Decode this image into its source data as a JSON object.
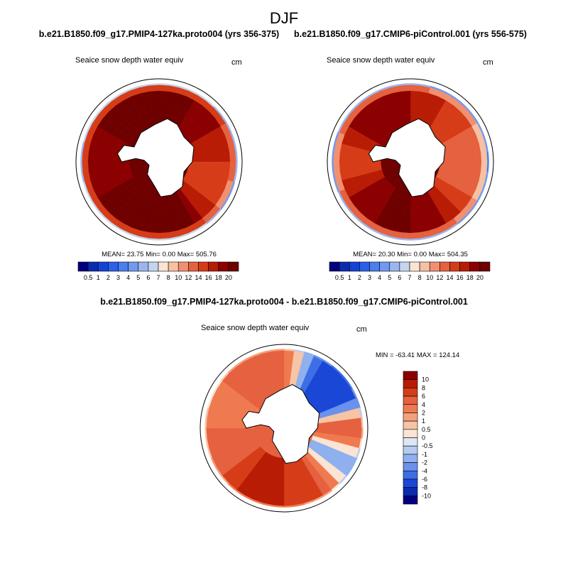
{
  "page": {
    "season_title": "DJF",
    "left_case_title": "b.e21.B1850.f09_g17.PMIP4-127ka.proto004 (yrs 356-375)",
    "right_case_title": "b.e21.B1850.f09_g17.CMIP6-piControl.001 (yrs 556-575)",
    "diff_title": "b.e21.B1850.f09_g17.PMIP4-127ka.proto004 - b.e21.B1850.f09_g17.CMIP6-piControl.001"
  },
  "colors": {
    "land": "#ffffff",
    "coast": "#000000",
    "frame": "#000000"
  },
  "chart_data": [
    {
      "type": "heatmap",
      "projection": "south-polar-stereographic",
      "panel": "left",
      "variable": "Seaice snow depth water equiv",
      "units": "cm",
      "stats": {
        "text": "MEAN=  23.75  Min=   0.00  Max= 505.76",
        "mean": 23.75,
        "min": 0.0,
        "max": 505.76
      },
      "colorbar": {
        "orientation": "horizontal",
        "levels": [
          "0.5",
          "1",
          "2",
          "3",
          "4",
          "5",
          "6",
          "7",
          "8",
          "10",
          "12",
          "14",
          "16",
          "18",
          "20"
        ],
        "colors": [
          "#00007f",
          "#0a2bb0",
          "#1643d6",
          "#2b60e8",
          "#4a7fee",
          "#7199ef",
          "#9bb6ee",
          "#c4d5ee",
          "#fbe4d4",
          "#f6c1a2",
          "#f19071",
          "#e5613f",
          "#d63c18",
          "#b81c05",
          "#8b0000",
          "#6f0000"
        ]
      },
      "field": {
        "center_value": 20,
        "sectors": [
          {
            "lon": 0,
            "value": 20
          },
          {
            "lon": 30,
            "value": 20
          },
          {
            "lon": 60,
            "value": 18
          },
          {
            "lon": 90,
            "value": 16
          },
          {
            "lon": 120,
            "value": 14
          },
          {
            "lon": 150,
            "value": 20
          },
          {
            "lon": 180,
            "value": 20
          },
          {
            "lon": 210,
            "value": 20
          },
          {
            "lon": 240,
            "value": 20
          },
          {
            "lon": 270,
            "value": 18
          },
          {
            "lon": 300,
            "value": 20
          },
          {
            "lon": 330,
            "value": 20
          }
        ],
        "edge_latitude_fraction": 0.86
      }
    },
    {
      "type": "heatmap",
      "projection": "south-polar-stereographic",
      "panel": "right",
      "variable": "Seaice snow depth water equiv",
      "units": "cm",
      "stats": {
        "text": "MEAN=  20.30  Min=   0.00  Max= 504.35",
        "mean": 20.3,
        "min": 0.0,
        "max": 504.35
      },
      "colorbar": {
        "orientation": "horizontal",
        "levels": [
          "0.5",
          "1",
          "2",
          "3",
          "4",
          "5",
          "6",
          "7",
          "8",
          "10",
          "12",
          "14",
          "16",
          "18",
          "20"
        ],
        "colors": [
          "#00007f",
          "#0a2bb0",
          "#1643d6",
          "#2b60e8",
          "#4a7fee",
          "#7199ef",
          "#9bb6ee",
          "#c4d5ee",
          "#fbe4d4",
          "#f6c1a2",
          "#f19071",
          "#e5613f",
          "#d63c18",
          "#b81c05",
          "#8b0000",
          "#6f0000"
        ]
      },
      "field": {
        "center_value": 20,
        "sectors": [
          {
            "lon": 0,
            "value": 18
          },
          {
            "lon": 30,
            "value": 16
          },
          {
            "lon": 60,
            "value": 14
          },
          {
            "lon": 90,
            "value": 12
          },
          {
            "lon": 120,
            "value": 14
          },
          {
            "lon": 150,
            "value": 18
          },
          {
            "lon": 180,
            "value": 20
          },
          {
            "lon": 210,
            "value": 20
          },
          {
            "lon": 240,
            "value": 18
          },
          {
            "lon": 270,
            "value": 14
          },
          {
            "lon": 300,
            "value": 18
          },
          {
            "lon": 330,
            "value": 20
          }
        ],
        "edge_latitude_fraction": 0.84
      }
    },
    {
      "type": "heatmap",
      "projection": "south-polar-stereographic",
      "panel": "difference",
      "variable": "Seaice snow depth water equiv",
      "units": "cm",
      "stats": {
        "text": "MIN = -63.41 MAX = 124.14",
        "min": -63.41,
        "max": 124.14
      },
      "colorbar": {
        "orientation": "vertical",
        "levels": [
          "10",
          "8",
          "6",
          "4",
          "2",
          "1",
          "0.5",
          "0",
          "-0.5",
          "-1",
          "-2",
          "-4",
          "-6",
          "-8",
          "-10"
        ],
        "colors": [
          "#8b0000",
          "#b81c05",
          "#d63c18",
          "#e5613f",
          "#f07a4f",
          "#f5a07c",
          "#f8c4a6",
          "#fbe4d4",
          "#dce6f4",
          "#b7cbee",
          "#8fb0ee",
          "#6a91ec",
          "#3c6ee6",
          "#1a47d6",
          "#0a2bb0",
          "#00007f"
        ]
      },
      "field": {
        "center_value": 4,
        "sectors": [
          {
            "lon": 0,
            "value": 5
          },
          {
            "lon": 30,
            "value": -6
          },
          {
            "lon": 60,
            "value": -8
          },
          {
            "lon": 90,
            "value": 6
          },
          {
            "lon": 120,
            "value": -3
          },
          {
            "lon": 150,
            "value": 6
          },
          {
            "lon": 180,
            "value": 8
          },
          {
            "lon": 210,
            "value": 9
          },
          {
            "lon": 240,
            "value": 5
          },
          {
            "lon": 270,
            "value": 4
          },
          {
            "lon": 300,
            "value": 3
          },
          {
            "lon": 330,
            "value": 6
          }
        ],
        "edge_latitude_fraction": 0.92
      }
    }
  ]
}
